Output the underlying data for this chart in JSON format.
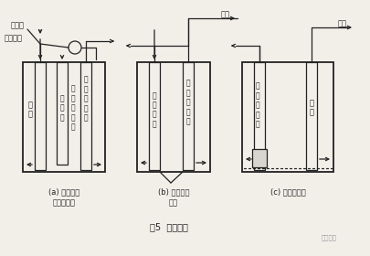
{
  "title": "图5  消底方法",
  "watermark": "豆丁施工",
  "bg_color": "#f2efe9",
  "line_color": "#222222",
  "label_a_line1": "(a) 应用导管",
  "label_a_line2": "吸泥泵方式",
  "label_b_line1": "(b) 空气升液",
  "label_b_line2": "方式",
  "label_c": "(c) 泥浆泵方式",
  "label_jieheqi": "接合器",
  "label_nijijujian": "泥浆补偿",
  "label_daoguan": "导\n管",
  "label_xinibeng": "吸\n泥\n泵",
  "label_kongqishengyepai": "空\n气\n升\n液\n排",
  "label_niguan_daoguan": "泥\n管\n或\n导\n管",
  "label_kongqi_ruanguan": "空\n气\n软\n管",
  "label_kongqi": "空气",
  "label_qianshuinijiangebeng": "潜\n水\n泥\n浆\n泵",
  "label_ruanguan": "软\n管",
  "font_size_label": 6.0,
  "font_size_title": 7.0,
  "font_size_watermark": 5.0
}
